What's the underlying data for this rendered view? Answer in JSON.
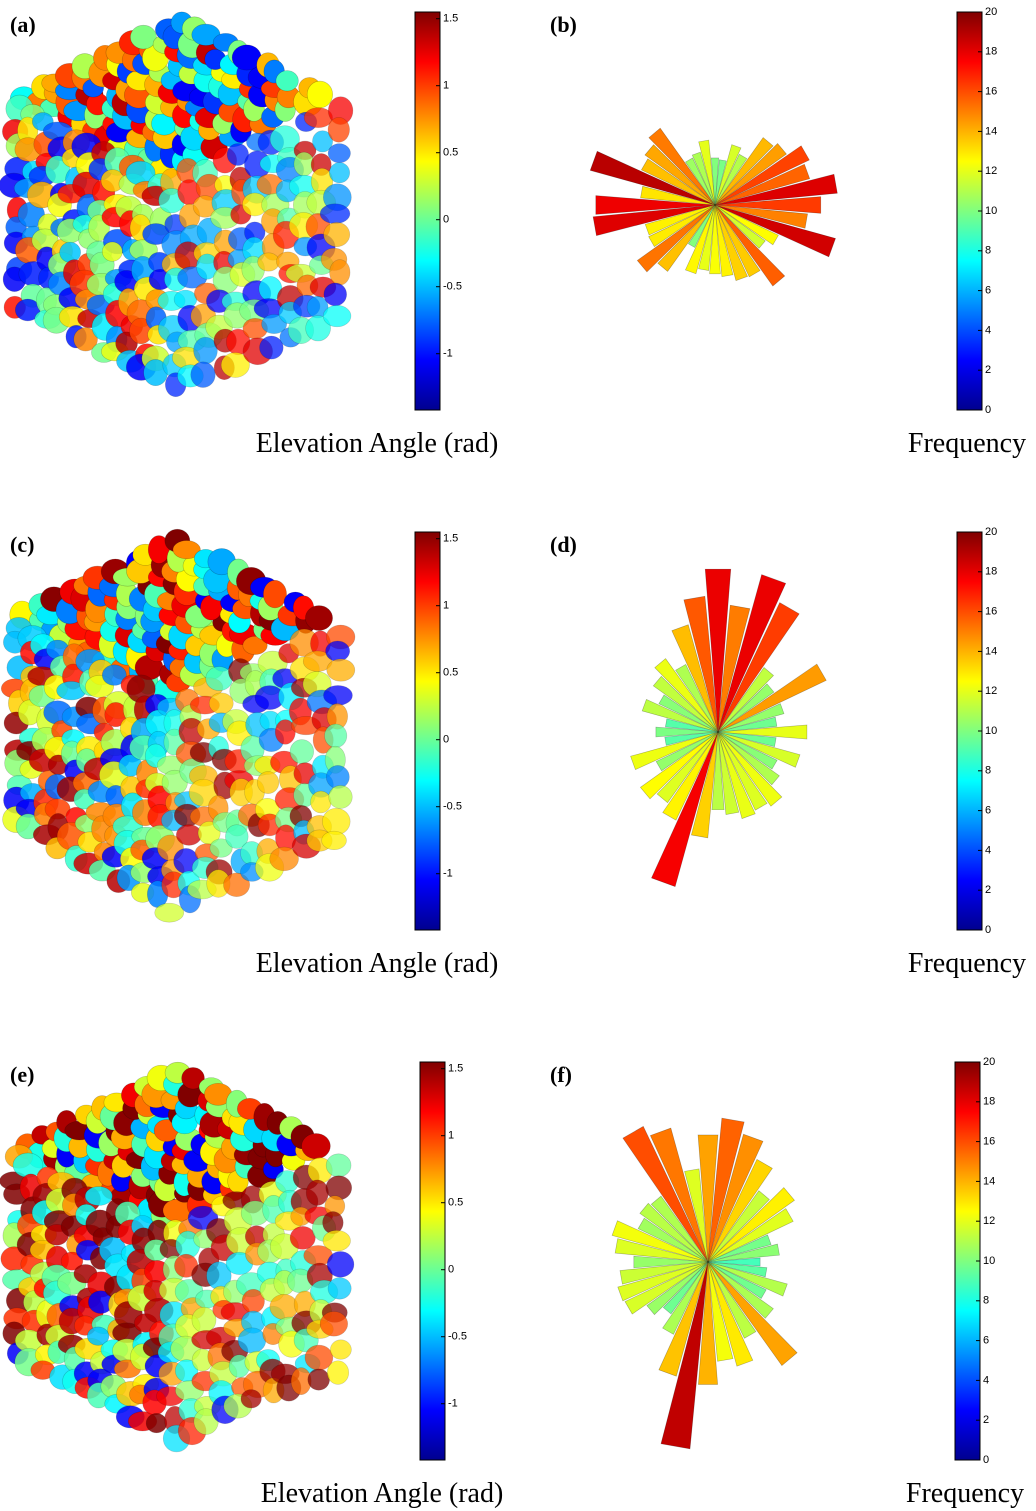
{
  "panels": [
    {
      "label": "(a)",
      "colorbar": {
        "label": "Elevation Angle (rad)",
        "lim": [
          -1.42,
          1.55
        ],
        "ticks": [
          1.5,
          1,
          0.5,
          0,
          -0.5,
          -1
        ]
      }
    },
    {
      "label": "(b)",
      "colorbar": {
        "label": "Frequency",
        "lim": [
          0,
          20
        ],
        "ticks": [
          20,
          18,
          16,
          14,
          12,
          10,
          8,
          6,
          4,
          2,
          0
        ]
      }
    },
    {
      "label": "(c)",
      "colorbar": {
        "label": "Elevation Angle (rad)",
        "lim": [
          -1.42,
          1.55
        ],
        "ticks": [
          1.5,
          1,
          0.5,
          0,
          -0.5,
          -1
        ]
      }
    },
    {
      "label": "(d)",
      "colorbar": {
        "label": "Frequency",
        "lim": [
          0,
          20
        ],
        "ticks": [
          20,
          18,
          16,
          14,
          12,
          10,
          8,
          6,
          4,
          2,
          0
        ]
      }
    },
    {
      "label": "(e)",
      "colorbar": {
        "label": "Elevation Angle (rad)",
        "lim": [
          -1.42,
          1.55
        ],
        "ticks": [
          1.5,
          1,
          0.5,
          0,
          -0.5,
          -1
        ]
      }
    },
    {
      "label": "(f)",
      "colorbar": {
        "label": "Frequency",
        "lim": [
          0,
          20
        ],
        "ticks": [
          20,
          18,
          16,
          14,
          12,
          10,
          8,
          6,
          4,
          2,
          0
        ]
      }
    }
  ]
}
